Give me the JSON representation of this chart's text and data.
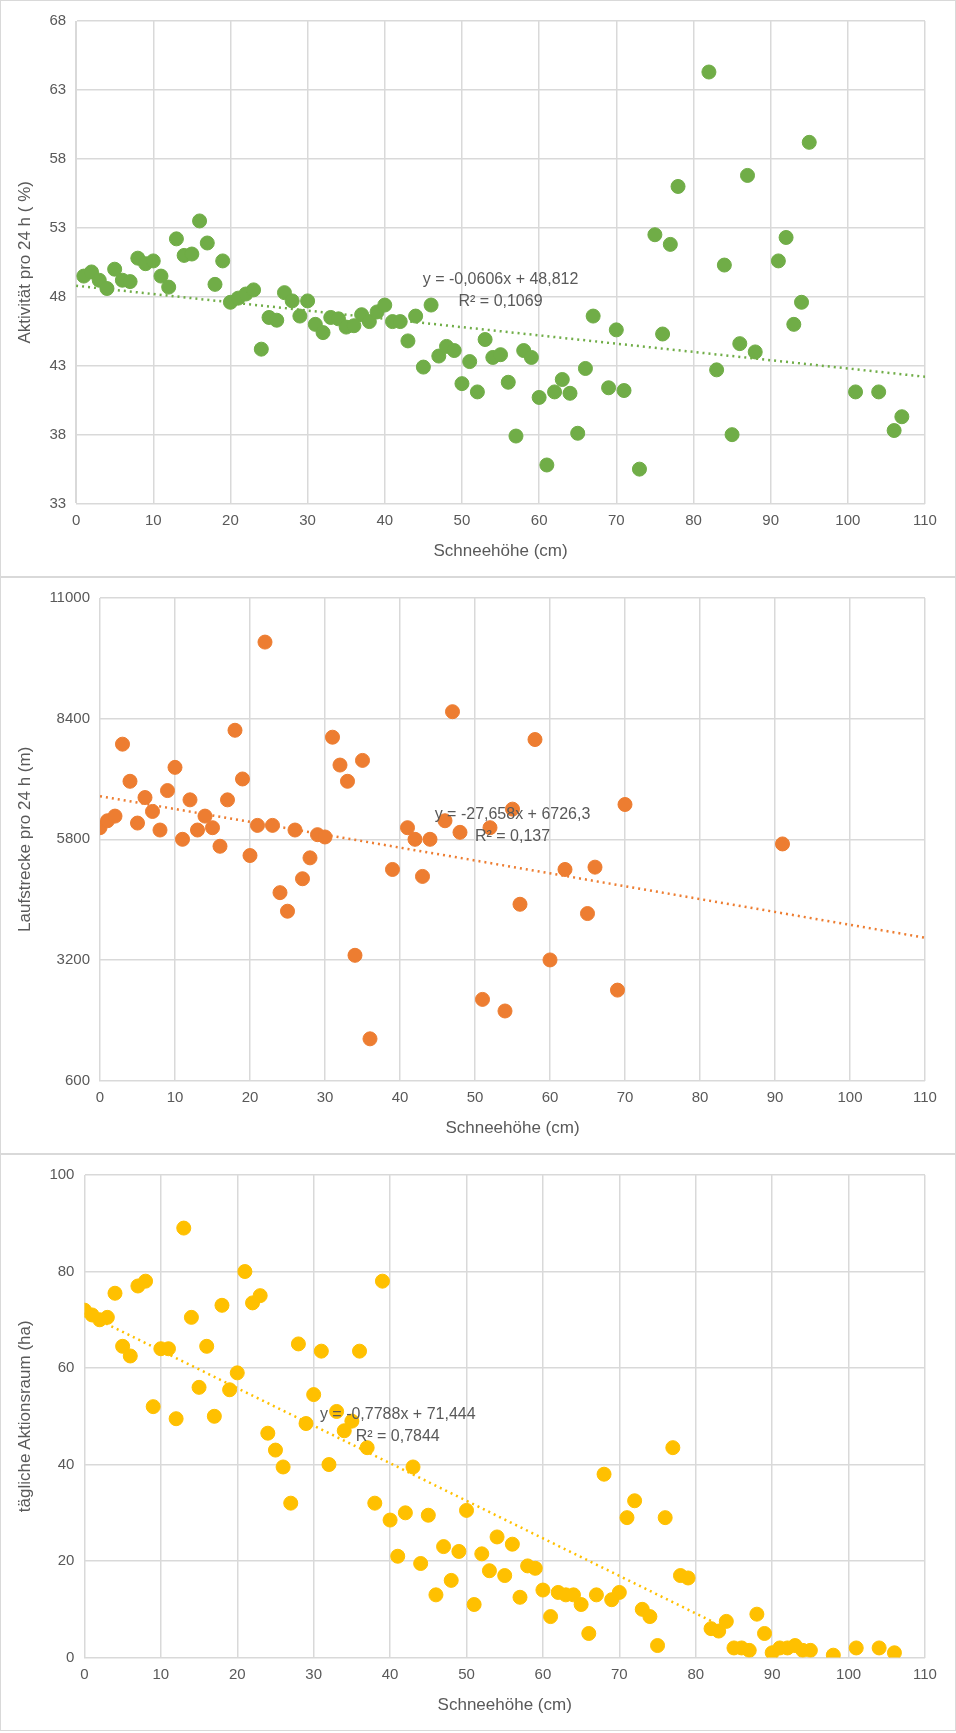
{
  "chart_data": [
    {
      "type": "scatter",
      "xlabel": "Schneehöhe (cm)",
      "ylabel": "Aktivität pro 24 h ( %)",
      "xlim": [
        0,
        110
      ],
      "xticks": [
        0,
        10,
        20,
        30,
        40,
        50,
        60,
        70,
        80,
        90,
        100,
        110
      ],
      "ylim": [
        33,
        68
      ],
      "yticks": [
        33,
        38,
        43,
        48,
        53,
        58,
        63,
        68
      ],
      "grid": true,
      "annotations": [
        "y = -0,0606x + 48,812",
        "R² = 0,1069"
      ],
      "series": [
        {
          "type": "scatter",
          "marker": "circle",
          "color": "#70ad47",
          "x": [
            1,
            2,
            3,
            4,
            5,
            6,
            7,
            8,
            9,
            10,
            11,
            12,
            13,
            14,
            15,
            16,
            17,
            18,
            19,
            20,
            21,
            22,
            23,
            24,
            25,
            26,
            27,
            28,
            29,
            30,
            31,
            32,
            33,
            34,
            35,
            36,
            37,
            38,
            39,
            40,
            41,
            42,
            43,
            44,
            45,
            46,
            47,
            48,
            49,
            50,
            51,
            52,
            53,
            54,
            55,
            56,
            57,
            58,
            59,
            60,
            61,
            62,
            63,
            64,
            65,
            66,
            67,
            69,
            70,
            71,
            73,
            75,
            76,
            77,
            78,
            82,
            83,
            84,
            85,
            86,
            87,
            88,
            91,
            92,
            93,
            94,
            95,
            101,
            104,
            106,
            107
          ],
          "values": [
            49.5,
            49.8,
            49.2,
            48.6,
            50,
            49.2,
            49.1,
            50.8,
            50.4,
            50.6,
            49.5,
            48.7,
            52.2,
            51,
            51.1,
            53.5,
            51.9,
            48.9,
            50.6,
            47.6,
            47.9,
            48.2,
            48.5,
            44.2,
            46.5,
            46.3,
            48.3,
            47.7,
            46.6,
            47.7,
            46,
            45.4,
            46.5,
            46.4,
            45.8,
            45.9,
            46.7,
            46.2,
            46.9,
            47.4,
            46.2,
            46.2,
            44.8,
            46.6,
            42.9,
            47.4,
            43.7,
            44.4,
            44.1,
            41.7,
            43.3,
            41.1,
            44.9,
            43.6,
            43.8,
            41.8,
            37.9,
            44.1,
            43.6,
            40.7,
            35.8,
            41.1,
            42,
            41,
            38.1,
            42.8,
            46.6,
            41.4,
            45.6,
            41.2,
            35.5,
            52.5,
            45.3,
            51.8,
            56,
            64.3,
            42.7,
            50.3,
            38,
            44.6,
            56.8,
            44,
            50.6,
            52.3,
            46,
            47.6,
            59.2,
            41.1,
            41.1,
            38.3,
            39.3
          ]
        },
        {
          "type": "line",
          "marker": "none",
          "line_style": "dotted",
          "color": "#70ad47",
          "x": [
            0,
            110
          ],
          "values": [
            48.8,
            42.2
          ]
        }
      ]
    },
    {
      "type": "scatter",
      "xlabel": "Schneehöhe (cm)",
      "ylabel": "Laufstrecke pro 24 h (m)",
      "xlim": [
        0,
        110
      ],
      "xticks": [
        0,
        10,
        20,
        30,
        40,
        50,
        60,
        70,
        80,
        90,
        100,
        110
      ],
      "ylim": [
        600,
        11000
      ],
      "yticks": [
        600,
        3200,
        5800,
        8400,
        11000
      ],
      "grid": true,
      "annotations": [
        "y = -27,658x + 6726,3",
        "R² = 0,137"
      ],
      "series": [
        {
          "type": "scatter",
          "marker": "circle",
          "color": "#ed7d31",
          "x": [
            0,
            1,
            2,
            3,
            4,
            5,
            6,
            7,
            8,
            9,
            10,
            11,
            12,
            13,
            14,
            15,
            16,
            17,
            18,
            19,
            20,
            21,
            22,
            23,
            24,
            25,
            26,
            27,
            28,
            29,
            30,
            31,
            32,
            33,
            34,
            35,
            36,
            39,
            41,
            42,
            43,
            44,
            46,
            47,
            48,
            51,
            52,
            54,
            55,
            56,
            58,
            60,
            62,
            65,
            66,
            69,
            70,
            91
          ],
          "values": [
            6050,
            6200,
            6300,
            7850,
            7050,
            6150,
            6700,
            6400,
            6000,
            6850,
            7350,
            5800,
            6650,
            6000,
            6300,
            6050,
            5650,
            6650,
            8150,
            7100,
            5450,
            6100,
            10050,
            6100,
            4650,
            4250,
            6000,
            4950,
            5400,
            5900,
            5850,
            8000,
            7400,
            7050,
            3300,
            7500,
            1500,
            5150,
            6050,
            5800,
            5000,
            5800,
            6200,
            8550,
            5950,
            2350,
            6050,
            2100,
            6450,
            4400,
            7950,
            3200,
            5150,
            4200,
            5200,
            2550,
            6550,
            5700
          ]
        },
        {
          "type": "line",
          "marker": "none",
          "line_style": "dotted",
          "color": "#ed7d31",
          "x": [
            0,
            110
          ],
          "values": [
            6730,
            3680
          ]
        }
      ]
    },
    {
      "type": "scatter",
      "xlabel": "Schneehöhe (cm)",
      "ylabel": "tägliche Aktionsraum (ha)",
      "xlim": [
        0,
        110
      ],
      "xticks": [
        0,
        10,
        20,
        30,
        40,
        50,
        60,
        70,
        80,
        90,
        100,
        110
      ],
      "ylim": [
        0,
        100
      ],
      "yticks": [
        0,
        20,
        40,
        60,
        80,
        100
      ],
      "grid": true,
      "annotations": [
        "y = -0,7788x + 71,444",
        "R² = 0,7844"
      ],
      "series": [
        {
          "type": "scatter",
          "marker": "circle",
          "color": "#ffc000",
          "x": [
            0,
            1,
            2,
            3,
            4,
            5,
            6,
            7,
            8,
            9,
            10,
            11,
            12,
            13,
            14,
            15,
            16,
            17,
            18,
            19,
            20,
            21,
            22,
            23,
            24,
            25,
            26,
            27,
            28,
            29,
            30,
            31,
            32,
            33,
            34,
            35,
            36,
            37,
            38,
            39,
            40,
            41,
            42,
            43,
            44,
            45,
            46,
            47,
            48,
            49,
            50,
            51,
            52,
            53,
            54,
            55,
            56,
            57,
            58,
            59,
            60,
            61,
            62,
            63,
            64,
            65,
            66,
            67,
            68,
            69,
            70,
            71,
            72,
            73,
            74,
            75,
            76,
            77,
            78,
            79,
            82,
            83,
            84,
            85,
            86,
            87,
            88,
            89,
            90,
            91,
            92,
            93,
            94,
            95,
            98,
            101,
            104,
            106
          ],
          "values": [
            72,
            71,
            70,
            70.5,
            75.5,
            64.5,
            62.5,
            77,
            78,
            52,
            64,
            64,
            49.5,
            89,
            70.5,
            56,
            64.5,
            50,
            73,
            55.5,
            59,
            80,
            73.5,
            75,
            46.5,
            43,
            39.5,
            32,
            65,
            48.5,
            54.5,
            63.5,
            40,
            51,
            47,
            49,
            63.5,
            43.5,
            32,
            78,
            28.5,
            21,
            30,
            39.5,
            19.5,
            29.5,
            13,
            23,
            16,
            22,
            30.5,
            11,
            21.5,
            18,
            25,
            17,
            23.5,
            12.5,
            19,
            18.5,
            14,
            8.5,
            13.5,
            13,
            13,
            11,
            5,
            13,
            38,
            12,
            13.5,
            29,
            32.5,
            10,
            8.5,
            2.5,
            29,
            43.5,
            17,
            16.5,
            6,
            5.5,
            7.5,
            2,
            2,
            1.5,
            9,
            5,
            1,
            2,
            2,
            2.5,
            1.5,
            1.5,
            0.5,
            2,
            2,
            1
          ]
        },
        {
          "type": "line",
          "marker": "none",
          "line_style": "dotted",
          "color": "#ffc000",
          "x": [
            0,
            82
          ],
          "values": [
            71.4,
            7.6
          ]
        }
      ]
    }
  ]
}
